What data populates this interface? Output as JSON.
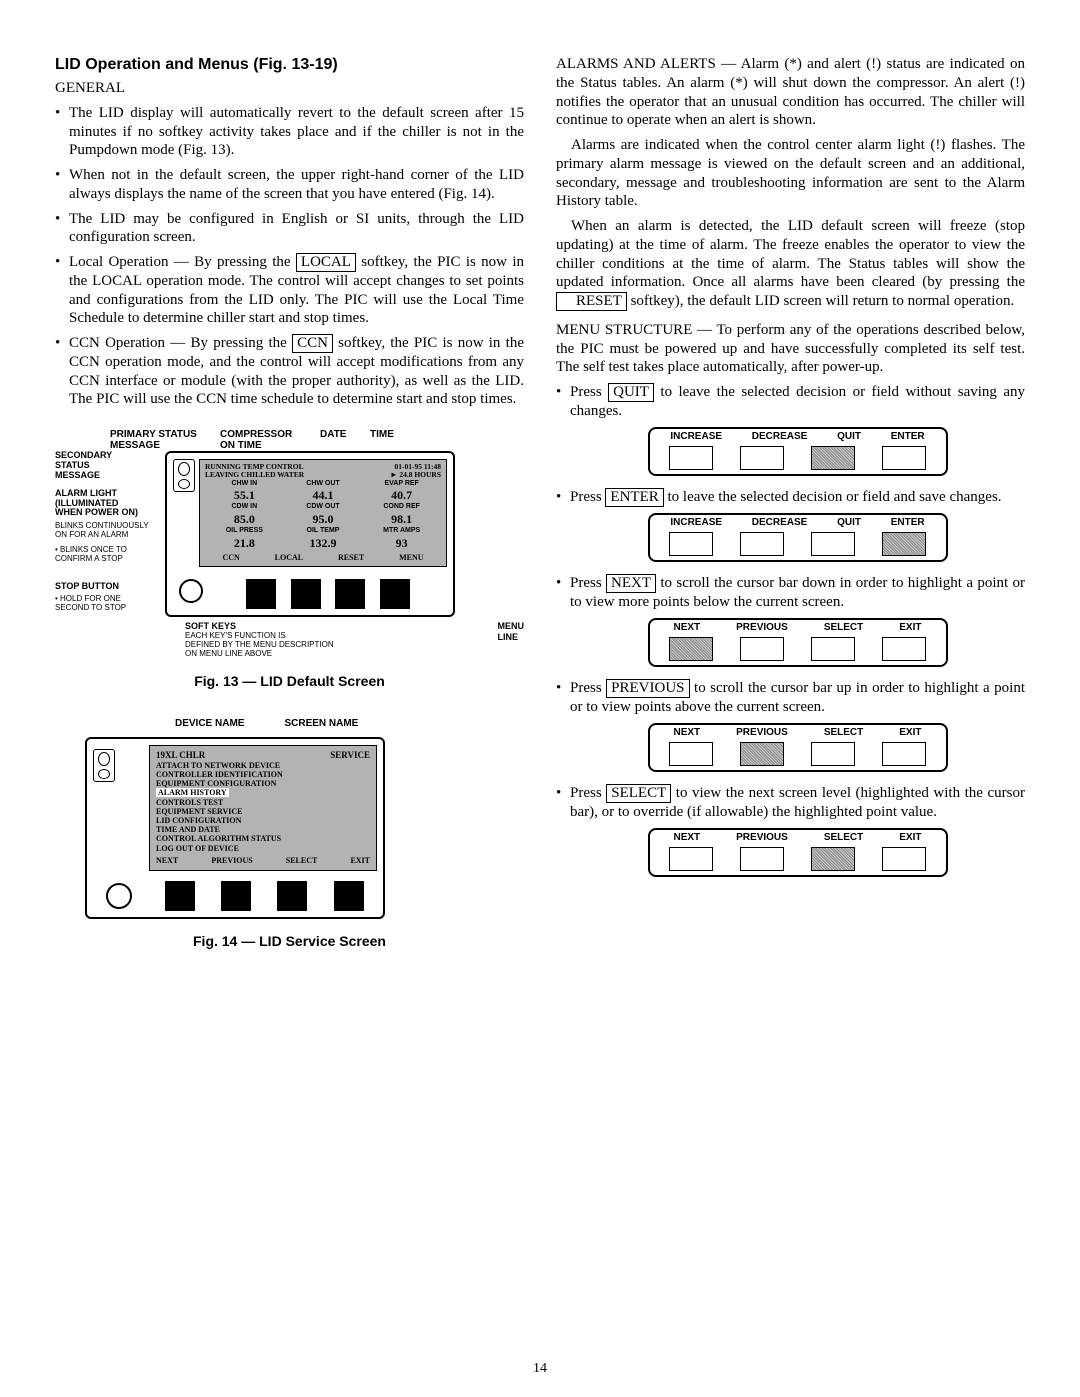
{
  "page_number": "14",
  "left": {
    "title": "LID Operation and Menus (Fig. 13-19)",
    "general": "GENERAL",
    "bullets": [
      "The LID display will automatically revert to the default screen after 15 minutes if no softkey activity takes place and if the chiller is not in the Pumpdown mode (Fig. 13).",
      "When not in the default screen, the upper right-hand corner of the LID always displays the name of the screen that you have entered (Fig. 14).",
      "The LID may be configured in English or SI units, through the LID configuration screen."
    ],
    "bullet_local_pre": "Local Operation — By pressing the ",
    "btn_local": "LOCAL",
    "bullet_local_post": " softkey, the PIC is now in the LOCAL operation mode. The control will accept changes to set points and configurations from the LID only. The PIC will use the Local Time Schedule to determine chiller start and stop times.",
    "bullet_ccn_pre": "CCN Operation — By pressing the ",
    "btn_ccn": "CCN",
    "bullet_ccn_post": " softkey, the PIC is now in the CCN operation mode, and the control will accept modifications from any CCN interface or module (with the proper authority), as well as the LID. The PIC will use the CCN time schedule to determine start and stop times.",
    "fig13": {
      "caption": "Fig. 13 — LID Default Screen",
      "labels": {
        "primary_status": "PRIMARY STATUS\nMESSAGE",
        "compressor": "COMPRESSOR\nON TIME",
        "date": "DATE",
        "time": "TIME",
        "secondary": "SECONDARY\nSTATUS\nMESSAGE",
        "alarm_light": "ALARM LIGHT\n(ILLUMINATED\nWHEN POWER ON)",
        "alarm_note": "BLINKS CONTINUOUSLY\nON FOR AN ALARM",
        "blinks_once": "BLINKS ONCE TO\nCONFIRM A STOP",
        "stop_button": "STOP BUTTON",
        "stop_note": "HOLD FOR ONE\nSECOND TO STOP",
        "soft_keys": "SOFT KEYS",
        "soft_keys_sub": "EACH KEY'S FUNCTION IS\nDEFINED BY THE MENU DESCRIPTION\nON MENU LINE ABOVE",
        "menu_line": "MENU\nLINE"
      },
      "screen": {
        "hdr1": "RUNNING TEMP CONTROL",
        "hdr2": "LEAVING CHILLED WATER",
        "hdr_date": "01-01-95 11:48",
        "hdr_hours": "24.8 HOURS",
        "row1": [
          "CHW IN",
          "CHW OUT",
          "EVAP REF"
        ],
        "val1": [
          "55.1",
          "44.1",
          "40.7"
        ],
        "row2": [
          "CDW IN",
          "CDW OUT",
          "COND REF"
        ],
        "val2": [
          "85.0",
          "95.0",
          "98.1"
        ],
        "row3": [
          "OIL PRESS",
          "OIL TEMP",
          "MTR AMPS"
        ],
        "val3": [
          "21.8",
          "132.9",
          "93"
        ],
        "menu": [
          "CCN",
          "LOCAL",
          "RESET",
          "MENU"
        ]
      }
    },
    "fig14": {
      "caption": "Fig. 14 — LID Service Screen",
      "labels": {
        "device_name": "DEVICE NAME",
        "screen_name": "SCREEN NAME"
      },
      "screen": {
        "device": "19XL CHLR",
        "screen": "SERVICE",
        "items": [
          "ATTACH TO NETWORK DEVICE",
          "CONTROLLER IDENTIFICATION",
          "EQUIPMENT CONFIGURATION",
          "ALARM HISTORY",
          "CONTROLS TEST",
          "EQUIPMENT SERVICE",
          "LID CONFIGURATION",
          "TIME AND DATE",
          "CONTROL ALGORITHM STATUS",
          "LOG OUT OF DEVICE"
        ],
        "highlight_index": 3,
        "menu": [
          "NEXT",
          "PREVIOUS",
          "SELECT",
          "EXIT"
        ]
      }
    }
  },
  "right": {
    "p1": "ALARMS AND ALERTS — Alarm (*) and alert (!) status are indicated on the Status tables. An alarm (*) will shut down the compressor. An alert (!) notifies the operator that an unusual condition has occurred. The chiller will continue to operate when an alert is shown.",
    "p2": "Alarms are indicated when the control center alarm light (!) flashes. The primary alarm message is viewed on the default screen and an additional, secondary, message and troubleshooting information are sent to the Alarm History table.",
    "p3_pre": "When an alarm is detected, the LID default screen will freeze (stop updating) at the time of alarm. The freeze enables the operator to view the chiller conditions at the time of alarm. The Status tables will show the updated information. Once all alarms have been cleared (by pressing the ",
    "btn_reset": "RESET",
    "p3_post": " softkey), the default LID screen will return to normal operation.",
    "p4": "MENU STRUCTURE — To perform any of the operations described below, the PIC must be powered up and have successfully completed its self test. The self test takes place automatically, after power-up.",
    "li1_pre": "Press ",
    "btn_quit": "QUIT",
    "li1_post": " to leave the selected decision or field without saving any changes.",
    "li2_pre": "Press ",
    "btn_enter": "ENTER",
    "li2_post": " to leave the selected decision or field and save changes.",
    "li3_pre": "Press ",
    "btn_next": "NEXT",
    "li3_post": " to scroll the cursor bar down in order to highlight a point or to view more points below the current screen.",
    "li4_pre": "Press ",
    "btn_previous": "PREVIOUS",
    "li4_post": " to scroll the cursor bar up in order to highlight a point or to view points above the current screen.",
    "li5_pre": "Press ",
    "btn_select": "SELECT",
    "li5_post": " to view the next screen level (highlighted with the cursor bar), or to override (if allowable) the highlighted point value.",
    "panel_idqe": {
      "labels": [
        "INCREASE",
        "DECREASE",
        "QUIT",
        "ENTER"
      ]
    },
    "panel_npse": {
      "labels": [
        "NEXT",
        "PREVIOUS",
        "SELECT",
        "EXIT"
      ]
    }
  }
}
